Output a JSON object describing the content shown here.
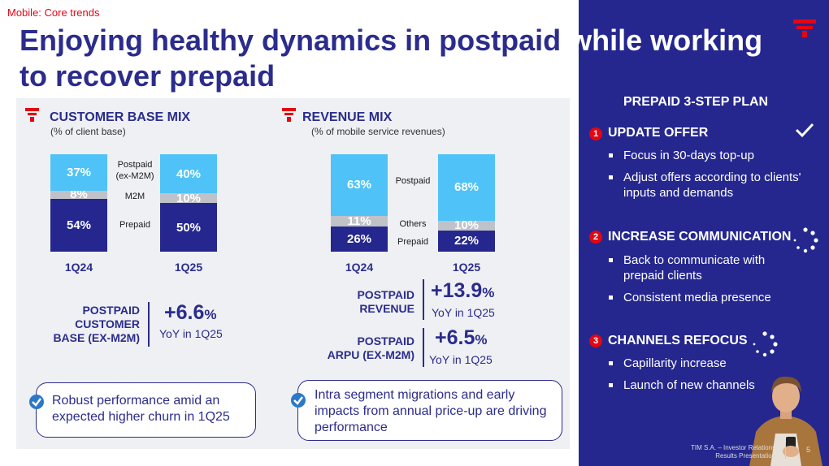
{
  "topic": "Mobile: Core trends",
  "title": {
    "line1_part1": "Enjoying healthy dynamics in postpaid",
    "line1_part2": " while working",
    "line2": "to recover prepaid"
  },
  "customer_base": {
    "title": "CUSTOMER BASE MIX",
    "subtitle": "(% of client base)",
    "legend": {
      "postpaid": "Postpaid (ex-M2M)",
      "m2m": "M2M",
      "prepaid": "Prepaid"
    },
    "chart_data": {
      "type": "bar",
      "stacked": true,
      "categories": [
        "1Q24",
        "1Q25"
      ],
      "series": [
        {
          "name": "Prepaid",
          "values": [
            54,
            50
          ],
          "labels": [
            "54%",
            "50%"
          ]
        },
        {
          "name": "M2M",
          "values": [
            8,
            10
          ],
          "labels": [
            "8%",
            "10%"
          ]
        },
        {
          "name": "Postpaid (ex-M2M)",
          "values": [
            37,
            40
          ],
          "labels": [
            "37%",
            "40%"
          ]
        }
      ]
    },
    "kpi": {
      "label_l1": "POSTPAID",
      "label_l2": "CUSTOMER",
      "label_l3": "BASE (EX-M2M)",
      "value": "+6.6",
      "unit": "%",
      "sub": "YoY in 1Q25"
    },
    "callout": "Robust performance amid an expected higher churn in 1Q25"
  },
  "revenue": {
    "title": "REVENUE MIX",
    "subtitle": "(% of mobile service revenues)",
    "legend": {
      "postpaid": "Postpaid",
      "others": "Others",
      "prepaid": "Prepaid"
    },
    "chart_data": {
      "type": "bar",
      "stacked": true,
      "categories": [
        "1Q24",
        "1Q25"
      ],
      "series": [
        {
          "name": "Prepaid",
          "values": [
            26,
            22
          ],
          "labels": [
            "26%",
            "22%"
          ]
        },
        {
          "name": "Others",
          "values": [
            11,
            10
          ],
          "labels": [
            "11%",
            "10%"
          ]
        },
        {
          "name": "Postpaid",
          "values": [
            63,
            68
          ],
          "labels": [
            "63%",
            "68%"
          ]
        }
      ]
    },
    "kpi1": {
      "label_l1": "POSTPAID",
      "label_l2": "REVENUE",
      "value": "+13.9",
      "unit": "%",
      "sub": "YoY in 1Q25"
    },
    "kpi2": {
      "label_l1": "POSTPAID",
      "label_l2": "ARPU (EX-M2M)",
      "value": "+6.5",
      "unit": "%",
      "sub": "YoY in 1Q25"
    },
    "callout": "Intra segment migrations and early impacts from annual price-up are driving performance"
  },
  "plan": {
    "title": "PREPAID 3-STEP PLAN",
    "steps": [
      {
        "num": "1",
        "title": "UPDATE OFFER",
        "bullets": [
          "Focus in 30-days top-up",
          "Adjust offers according to clients' inputs and demands"
        ]
      },
      {
        "num": "2",
        "title": "INCREASE COMMUNICATION",
        "bullets": [
          "Back to communicate with prepaid clients",
          "Consistent media presence"
        ]
      },
      {
        "num": "3",
        "title": "CHANNELS REFOCUS",
        "bullets": [
          "Capillarity increase",
          "Launch of new channels"
        ]
      }
    ]
  },
  "footer": {
    "line1": "TIM S.A. – Investor Relations",
    "line2": "Results Presentation",
    "page": "5"
  },
  "colors": {
    "brand_blue": "#25278e",
    "light_blue": "#4fc3f7",
    "grey": "#bfc2c8",
    "red": "#e30613"
  }
}
